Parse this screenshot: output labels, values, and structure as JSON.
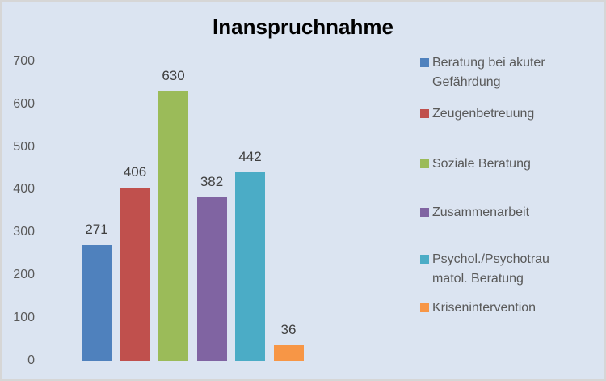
{
  "title": "Inanspruchnahme",
  "chart_data": {
    "type": "bar",
    "title": "Inanspruchnahme",
    "categories": [
      "Beratung bei akuter Gefährdung",
      "Zeugenbetreuung",
      "Soziale Beratung",
      "Zusammenarbeit",
      "Psychol./Psychotraumatol. Beratung",
      "Krisenintervention"
    ],
    "values": [
      271,
      406,
      630,
      382,
      442,
      36
    ],
    "bar_colors": [
      "#4f81bd",
      "#c0504d",
      "#9bbb59",
      "#8064a2",
      "#4bacc6",
      "#f79646"
    ],
    "value_labels": [
      "271",
      "406",
      "630",
      "382",
      "442",
      "36"
    ],
    "ylim": [
      0,
      700
    ],
    "yticks": [
      0,
      100,
      200,
      300,
      400,
      500,
      600,
      700
    ],
    "grid": false,
    "axis_lines": false,
    "legend_position": "right",
    "legend_lines": [
      [
        "Beratung bei akuter",
        "Gefährdung"
      ],
      [
        "Zeugenbetreuung"
      ],
      [
        "Soziale Beratung"
      ],
      [
        "Zusammenarbeit"
      ],
      [
        "Psychol./Psychotrau",
        "matol. Beratung"
      ],
      [
        "Krisenintervention"
      ]
    ]
  },
  "colors": {
    "background": "#dbe4f1",
    "frame_border": "#d6d6d6",
    "title_text": "#000000",
    "tick_text": "#595959",
    "value_label_text": "#404040",
    "legend_text": "#595959"
  }
}
